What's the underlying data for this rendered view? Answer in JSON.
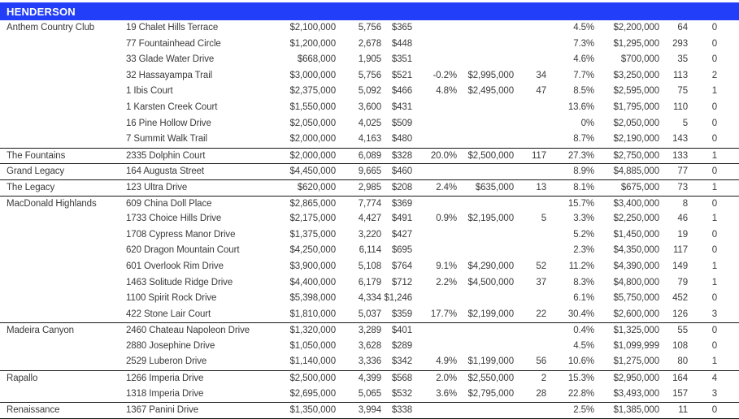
{
  "header": {
    "title": "HENDERSON"
  },
  "colors": {
    "header_bg": "#233ef8",
    "header_text": "#ffffff",
    "row_text": "#3a3a3a",
    "divider": "#161616"
  },
  "table": {
    "rows": [
      {
        "community": "Anthem Country Club",
        "address": "19 Chalet Hills Terrace",
        "price": "$2,100,000",
        "sqft": "5,756",
        "ppsf": "$365",
        "pct_a": "",
        "price_b": "",
        "num_a": "",
        "pct_b": "4.5%",
        "price_c": "$2,200,000",
        "num_b": "64",
        "num_c": "0",
        "divider": false
      },
      {
        "community": "",
        "address": "77 Fountainhead Circle",
        "price": "$1,200,000",
        "sqft": "2,678",
        "ppsf": "$448",
        "pct_a": "",
        "price_b": "",
        "num_a": "",
        "pct_b": "7.3%",
        "price_c": "$1,295,000",
        "num_b": "293",
        "num_c": "0",
        "divider": false
      },
      {
        "community": "",
        "address": "33 Glade Water Drive",
        "price": "$668,000",
        "sqft": "1,905",
        "ppsf": "$351",
        "pct_a": "",
        "price_b": "",
        "num_a": "",
        "pct_b": "4.6%",
        "price_c": "$700,000",
        "num_b": "35",
        "num_c": "0",
        "divider": false
      },
      {
        "community": "",
        "address": "32 Hassayampa Trail",
        "price": "$3,000,000",
        "sqft": "5,756",
        "ppsf": "$521",
        "pct_a": "-0.2%",
        "price_b": "$2,995,000",
        "num_a": "34",
        "pct_b": "7.7%",
        "price_c": "$3,250,000",
        "num_b": "113",
        "num_c": "2",
        "divider": false
      },
      {
        "community": "",
        "address": "1 Ibis Court",
        "price": "$2,375,000",
        "sqft": "5,092",
        "ppsf": "$466",
        "pct_a": "4.8%",
        "price_b": "$2,495,000",
        "num_a": "47",
        "pct_b": "8.5%",
        "price_c": "$2,595,000",
        "num_b": "75",
        "num_c": "1",
        "divider": false
      },
      {
        "community": "",
        "address": "1 Karsten Creek Court",
        "price": "$1,550,000",
        "sqft": "3,600",
        "ppsf": "$431",
        "pct_a": "",
        "price_b": "",
        "num_a": "",
        "pct_b": "13.6%",
        "price_c": "$1,795,000",
        "num_b": "110",
        "num_c": "0",
        "divider": false
      },
      {
        "community": "",
        "address": "16 Pine Hollow Drive",
        "price": "$2,050,000",
        "sqft": "4,025",
        "ppsf": "$509",
        "pct_a": "",
        "price_b": "",
        "num_a": "",
        "pct_b": "0%",
        "price_c": "$2,050,000",
        "num_b": "5",
        "num_c": "0",
        "divider": false
      },
      {
        "community": "",
        "address": "7 Summit Walk Trail",
        "price": "$2,000,000",
        "sqft": "4,163",
        "ppsf": "$480",
        "pct_a": "",
        "price_b": "",
        "num_a": "",
        "pct_b": "8.7%",
        "price_c": "$2,190,000",
        "num_b": "143",
        "num_c": "0",
        "divider": false
      },
      {
        "community": "The Fountains",
        "address": "2335 Dolphin Court",
        "price": "$2,000,000",
        "sqft": "6,089",
        "ppsf": "$328",
        "pct_a": "20.0%",
        "price_b": "$2,500,000",
        "num_a": "117",
        "pct_b": "27.3%",
        "price_c": "$2,750,000",
        "num_b": "133",
        "num_c": "1",
        "divider": true
      },
      {
        "community": "Grand Legacy",
        "address": "164 Augusta Street",
        "price": "$4,450,000",
        "sqft": "9,665",
        "ppsf": "$460",
        "pct_a": "",
        "price_b": "",
        "num_a": "",
        "pct_b": "8.9%",
        "price_c": "$4,885,000",
        "num_b": "77",
        "num_c": "0",
        "divider": true
      },
      {
        "community": "The Legacy",
        "address": "123 Ultra Drive",
        "price": "$620,000",
        "sqft": "2,985",
        "ppsf": "$208",
        "pct_a": "2.4%",
        "price_b": "$635,000",
        "num_a": "13",
        "pct_b": "8.1%",
        "price_c": "$675,000",
        "num_b": "73",
        "num_c": "1",
        "divider": true
      },
      {
        "community": "MacDonald Highlands",
        "address": "609 China Doll Place",
        "price": "$2,865,000",
        "sqft": "7,774",
        "ppsf": "$369",
        "pct_a": "",
        "price_b": "",
        "num_a": "",
        "pct_b": "15.7%",
        "price_c": "$3,400,000",
        "num_b": "8",
        "num_c": "0",
        "divider": true
      },
      {
        "community": "",
        "address": "1733 Choice Hills Drive",
        "price": "$2,175,000",
        "sqft": "4,427",
        "ppsf": "$491",
        "pct_a": "0.9%",
        "price_b": "$2,195,000",
        "num_a": "5",
        "pct_b": "3.3%",
        "price_c": "$2,250,000",
        "num_b": "46",
        "num_c": "1",
        "divider": false
      },
      {
        "community": "",
        "address": "1708 Cypress Manor Drive",
        "price": "$1,375,000",
        "sqft": "3,220",
        "ppsf": "$427",
        "pct_a": "",
        "price_b": "",
        "num_a": "",
        "pct_b": "5.2%",
        "price_c": "$1,450,000",
        "num_b": "19",
        "num_c": "0",
        "divider": false
      },
      {
        "community": "",
        "address": "620 Dragon Mountain Court",
        "price": "$4,250,000",
        "sqft": "6,114",
        "ppsf": "$695",
        "pct_a": "",
        "price_b": "",
        "num_a": "",
        "pct_b": "2.3%",
        "price_c": "$4,350,000",
        "num_b": "117",
        "num_c": "0",
        "divider": false
      },
      {
        "community": "",
        "address": "601 Overlook Rim Drive",
        "price": "$3,900,000",
        "sqft": "5,108",
        "ppsf": "$764",
        "pct_a": "9.1%",
        "price_b": "$4,290,000",
        "num_a": "52",
        "pct_b": "11.2%",
        "price_c": "$4,390,000",
        "num_b": "149",
        "num_c": "1",
        "divider": false
      },
      {
        "community": "",
        "address": "1463 Solitude Ridge Drive",
        "price": "$4,400,000",
        "sqft": "6,179",
        "ppsf": "$712",
        "pct_a": "2.2%",
        "price_b": "$4,500,000",
        "num_a": "37",
        "pct_b": "8.3%",
        "price_c": "$4,800,000",
        "num_b": "79",
        "num_c": "1",
        "divider": false
      },
      {
        "community": "",
        "address": "1100 Spirit Rock Drive",
        "price": "$5,398,000",
        "sqft": "4,334",
        "ppsf": "$1,246",
        "pct_a": "",
        "price_b": "",
        "num_a": "",
        "pct_b": "6.1%",
        "price_c": "$5,750,000",
        "num_b": "452",
        "num_c": "0",
        "divider": false
      },
      {
        "community": "",
        "address": "422 Stone Lair Court",
        "price": "$1,810,000",
        "sqft": "5,037",
        "ppsf": "$359",
        "pct_a": "17.7%",
        "price_b": "$2,199,000",
        "num_a": "22",
        "pct_b": "30.4%",
        "price_c": "$2,600,000",
        "num_b": "126",
        "num_c": "3",
        "divider": false
      },
      {
        "community": "Madeira Canyon",
        "address": "2460 Chateau Napoleon Drive",
        "price": "$1,320,000",
        "sqft": "3,289",
        "ppsf": "$401",
        "pct_a": "",
        "price_b": "",
        "num_a": "",
        "pct_b": "0.4%",
        "price_c": "$1,325,000",
        "num_b": "55",
        "num_c": "0",
        "divider": true
      },
      {
        "community": "",
        "address": "2880 Josephine Drive",
        "price": "$1,050,000",
        "sqft": "3,628",
        "ppsf": "$289",
        "pct_a": "",
        "price_b": "",
        "num_a": "",
        "pct_b": "4.5%",
        "price_c": "$1,099,999",
        "num_b": "108",
        "num_c": "0",
        "divider": false
      },
      {
        "community": "",
        "address": "2529 Luberon Drive",
        "price": "$1,140,000",
        "sqft": "3,336",
        "ppsf": "$342",
        "pct_a": "4.9%",
        "price_b": "$1,199,000",
        "num_a": "56",
        "pct_b": "10.6%",
        "price_c": "$1,275,000",
        "num_b": "80",
        "num_c": "1",
        "divider": false
      },
      {
        "community": "Rapallo",
        "address": "1266 Imperia Drive",
        "price": "$2,500,000",
        "sqft": "4,399",
        "ppsf": "$568",
        "pct_a": "2.0%",
        "price_b": "$2,550,000",
        "num_a": "2",
        "pct_b": "15.3%",
        "price_c": "$2,950,000",
        "num_b": "164",
        "num_c": "4",
        "divider": true
      },
      {
        "community": "",
        "address": "1318 Imperia Drive",
        "price": "$2,695,000",
        "sqft": "5,065",
        "ppsf": "$532",
        "pct_a": "3.6%",
        "price_b": "$2,795,000",
        "num_a": "28",
        "pct_b": "22.8%",
        "price_c": "$3,493,000",
        "num_b": "157",
        "num_c": "3",
        "divider": false
      },
      {
        "community": "Renaissance",
        "address": "1367 Panini Drive",
        "price": "$1,350,000",
        "sqft": "3,994",
        "ppsf": "$338",
        "pct_a": "",
        "price_b": "",
        "num_a": "",
        "pct_b": "2.5%",
        "price_c": "$1,385,000",
        "num_b": "11",
        "num_c": "0",
        "divider": true
      }
    ]
  }
}
